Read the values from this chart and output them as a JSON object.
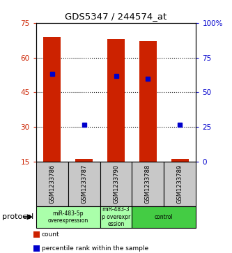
{
  "title": "GDS5347 / 244574_at",
  "samples": [
    "GSM1233786",
    "GSM1233787",
    "GSM1233790",
    "GSM1233788",
    "GSM1233789"
  ],
  "bar_bottoms": [
    15,
    15,
    15,
    15,
    15
  ],
  "bar_tops": [
    69,
    16.2,
    68,
    67,
    16.2
  ],
  "blue_markers_left": [
    53,
    31,
    52,
    51,
    31
  ],
  "ylim_left": [
    15,
    75
  ],
  "ylim_right": [
    0,
    100
  ],
  "yticks_left": [
    15,
    30,
    45,
    60,
    75
  ],
  "yticks_right": [
    0,
    25,
    50,
    75,
    100
  ],
  "bar_color": "#cc2200",
  "marker_color": "#0000cc",
  "background_color": "#ffffff",
  "label_area_color": "#c8c8c8",
  "group_defs": [
    {
      "samples": [
        0,
        1
      ],
      "label": "miR-483-5p\noverexpression",
      "color": "#aaffaa"
    },
    {
      "samples": [
        2
      ],
      "label": "miR-483-3\np overexpr\nession",
      "color": "#aaffaa"
    },
    {
      "samples": [
        3,
        4
      ],
      "label": "control",
      "color": "#44cc44"
    }
  ],
  "legend_items": [
    {
      "label": "count",
      "color": "#cc2200"
    },
    {
      "label": "percentile rank within the sample",
      "color": "#0000cc"
    }
  ],
  "protocol_label": "protocol"
}
